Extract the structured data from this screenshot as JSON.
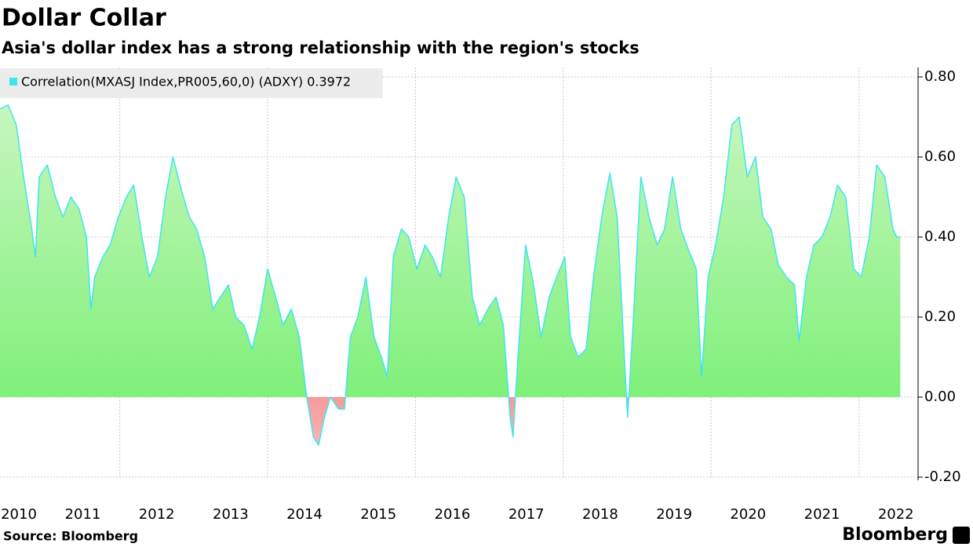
{
  "chart_data": {
    "type": "area",
    "title": "Dollar Collar",
    "subtitle": "Asia's dollar index has a strong relationship with the region's stocks",
    "source": "Source: Bloomberg",
    "brand": "Bloomberg",
    "series": [
      {
        "name": "Correlation(MXASJ Index,PR005,60,0) (ADXY) 0.3972",
        "color": "#3de6ef",
        "x": [
          2010.38,
          2010.49,
          2010.6,
          2010.7,
          2010.81,
          2010.86,
          2010.91,
          2011.02,
          2011.13,
          2011.23,
          2011.34,
          2011.45,
          2011.55,
          2011.61,
          2011.66,
          2011.77,
          2011.87,
          2011.98,
          2012.09,
          2012.19,
          2012.3,
          2012.4,
          2012.51,
          2012.62,
          2012.72,
          2012.83,
          2012.94,
          2013.04,
          2013.15,
          2013.26,
          2013.36,
          2013.47,
          2013.57,
          2013.68,
          2013.79,
          2013.89,
          2014.0,
          2014.11,
          2014.21,
          2014.32,
          2014.43,
          2014.53,
          2014.62,
          2014.69,
          2014.77,
          2014.85,
          2014.96,
          2015.04,
          2015.12,
          2015.22,
          2015.33,
          2015.44,
          2015.54,
          2015.62,
          2015.7,
          2015.81,
          2015.91,
          2016.02,
          2016.13,
          2016.23,
          2016.34,
          2016.45,
          2016.55,
          2016.66,
          2016.77,
          2016.87,
          2016.98,
          2017.09,
          2017.19,
          2017.28,
          2017.32,
          2017.38,
          2017.49,
          2017.6,
          2017.7,
          2017.81,
          2017.91,
          2018.02,
          2018.1,
          2018.2,
          2018.31,
          2018.41,
          2018.52,
          2018.63,
          2018.73,
          2018.84,
          2018.87,
          2018.95,
          2019.05,
          2019.16,
          2019.27,
          2019.37,
          2019.48,
          2019.59,
          2019.69,
          2019.8,
          2019.87,
          2019.96,
          2020.06,
          2020.17,
          2020.28,
          2020.38,
          2020.49,
          2020.6,
          2020.7,
          2020.81,
          2020.91,
          2021.02,
          2021.13,
          2021.19,
          2021.29,
          2021.39,
          2021.5,
          2021.61,
          2021.71,
          2021.82,
          2021.93,
          2022.03,
          2022.14,
          2022.24,
          2022.35,
          2022.46,
          2022.51,
          2022.56
        ],
        "values": [
          0.72,
          0.73,
          0.68,
          0.55,
          0.42,
          0.35,
          0.55,
          0.58,
          0.5,
          0.45,
          0.5,
          0.47,
          0.4,
          0.22,
          0.3,
          0.35,
          0.38,
          0.45,
          0.5,
          0.53,
          0.4,
          0.3,
          0.35,
          0.5,
          0.6,
          0.52,
          0.45,
          0.42,
          0.35,
          0.22,
          0.25,
          0.28,
          0.2,
          0.18,
          0.12,
          0.2,
          0.32,
          0.25,
          0.18,
          0.22,
          0.15,
          0.0,
          -0.1,
          -0.12,
          -0.05,
          0.0,
          -0.03,
          -0.03,
          0.15,
          0.2,
          0.3,
          0.15,
          0.1,
          0.05,
          0.35,
          0.42,
          0.4,
          0.32,
          0.38,
          0.35,
          0.3,
          0.45,
          0.55,
          0.5,
          0.25,
          0.18,
          0.22,
          0.25,
          0.18,
          -0.05,
          -0.1,
          0.08,
          0.38,
          0.28,
          0.15,
          0.25,
          0.3,
          0.35,
          0.15,
          0.1,
          0.12,
          0.3,
          0.45,
          0.56,
          0.45,
          0.05,
          -0.05,
          0.2,
          0.55,
          0.45,
          0.38,
          0.42,
          0.55,
          0.42,
          0.37,
          0.32,
          0.05,
          0.3,
          0.38,
          0.5,
          0.68,
          0.7,
          0.55,
          0.6,
          0.45,
          0.42,
          0.33,
          0.3,
          0.28,
          0.14,
          0.3,
          0.38,
          0.4,
          0.45,
          0.53,
          0.5,
          0.32,
          0.3,
          0.4,
          0.58,
          0.55,
          0.42,
          0.4,
          0.4
        ]
      }
    ],
    "xlim": [
      2010.38,
      2022.8
    ],
    "xticks": [
      {
        "value": 2010.5,
        "label": "2010"
      },
      {
        "value": 2011.5,
        "label": "2011"
      },
      {
        "value": 2012.5,
        "label": "2012"
      },
      {
        "value": 2013.5,
        "label": "2013"
      },
      {
        "value": 2014.5,
        "label": "2014"
      },
      {
        "value": 2015.5,
        "label": "2015"
      },
      {
        "value": 2016.5,
        "label": "2016"
      },
      {
        "value": 2017.5,
        "label": "2017"
      },
      {
        "value": 2018.5,
        "label": "2018"
      },
      {
        "value": 2019.5,
        "label": "2019"
      },
      {
        "value": 2020.5,
        "label": "2020"
      },
      {
        "value": 2021.5,
        "label": "2021"
      },
      {
        "value": 2022.5,
        "label": "2022"
      }
    ],
    "xgrid": [
      2012,
      2014,
      2016,
      2018,
      2020,
      2022
    ],
    "ylim": [
      -0.2,
      0.8
    ],
    "yticks": [
      {
        "value": -0.2,
        "label": "-0.20"
      },
      {
        "value": 0,
        "label": "0.00"
      },
      {
        "value": 0.2,
        "label": "0.20"
      },
      {
        "value": 0.4,
        "label": "0.40"
      },
      {
        "value": 0.6,
        "label": "0.60"
      },
      {
        "value": 0.8,
        "label": "0.80"
      }
    ],
    "grid": true,
    "legend": "top-left"
  }
}
